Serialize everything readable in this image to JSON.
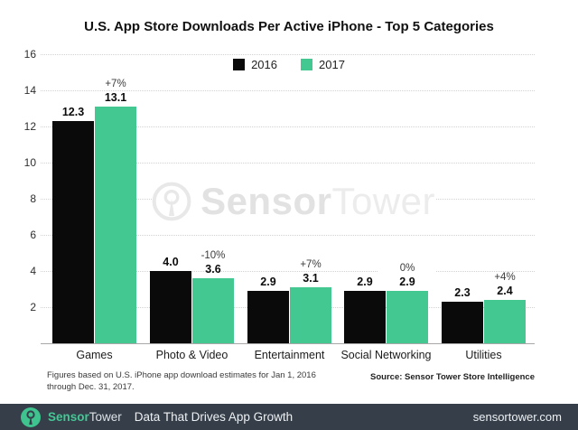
{
  "title": "U.S. App Store Downloads Per Active iPhone - Top 5 Categories",
  "legend": [
    {
      "label": "2016",
      "color": "#0a0a0a"
    },
    {
      "label": "2017",
      "color": "#44c892"
    }
  ],
  "chart_data": {
    "type": "bar",
    "title": "U.S. App Store Downloads Per Active iPhone - Top 5 Categories",
    "categories": [
      "Games",
      "Photo & Video",
      "Entertainment",
      "Social Networking",
      "Utilities"
    ],
    "series": [
      {
        "name": "2016",
        "values": [
          12.3,
          4.0,
          2.9,
          2.9,
          2.3
        ],
        "color": "#0a0a0a"
      },
      {
        "name": "2017",
        "values": [
          13.1,
          3.6,
          3.1,
          2.9,
          2.4
        ],
        "color": "#44c892"
      }
    ],
    "change_labels": [
      "+7%",
      "-10%",
      "+7%",
      "0%",
      "+4%"
    ],
    "xlabel": "",
    "ylabel": "",
    "ylim": [
      0,
      16
    ],
    "yticks": [
      2,
      4,
      6,
      8,
      10,
      12,
      14,
      16
    ],
    "grid": true,
    "legend_position": "top-center"
  },
  "watermark": {
    "brand_bold": "Sensor",
    "brand_light": "Tower"
  },
  "footnote": {
    "line1": "Figures based on U.S. iPhone app download estimates for Jan 1, 2016",
    "line2": "through Dec. 31, 2017."
  },
  "source": "Source: Sensor Tower Store Intelligence",
  "footer_bar": {
    "brand_bold": "Sensor",
    "brand_light": "Tower",
    "tagline": "Data That Drives App Growth",
    "url": "sensortower.com",
    "bg_color": "#353e49",
    "accent_color": "#45c795",
    "text_color": "#eef1f3"
  }
}
